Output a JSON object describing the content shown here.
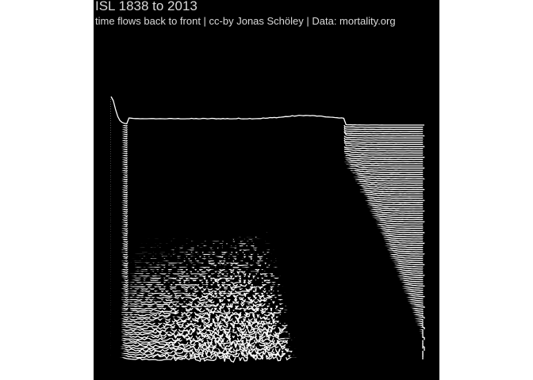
{
  "chart_data": {
    "type": "ridgeline",
    "title": "ISL 1838 to 2013",
    "subtitle": "time flows back to front | cc-by Jonas Schöley | Data: mortality.org",
    "country": "ISL",
    "year_range": [
      1838,
      2013
    ],
    "xlabel": "",
    "ylabel": "",
    "series_count": 110,
    "colors": {
      "background": "#000000",
      "line": "#ffffff",
      "text": "#d9d9d9",
      "page": "#ffffff"
    }
  }
}
